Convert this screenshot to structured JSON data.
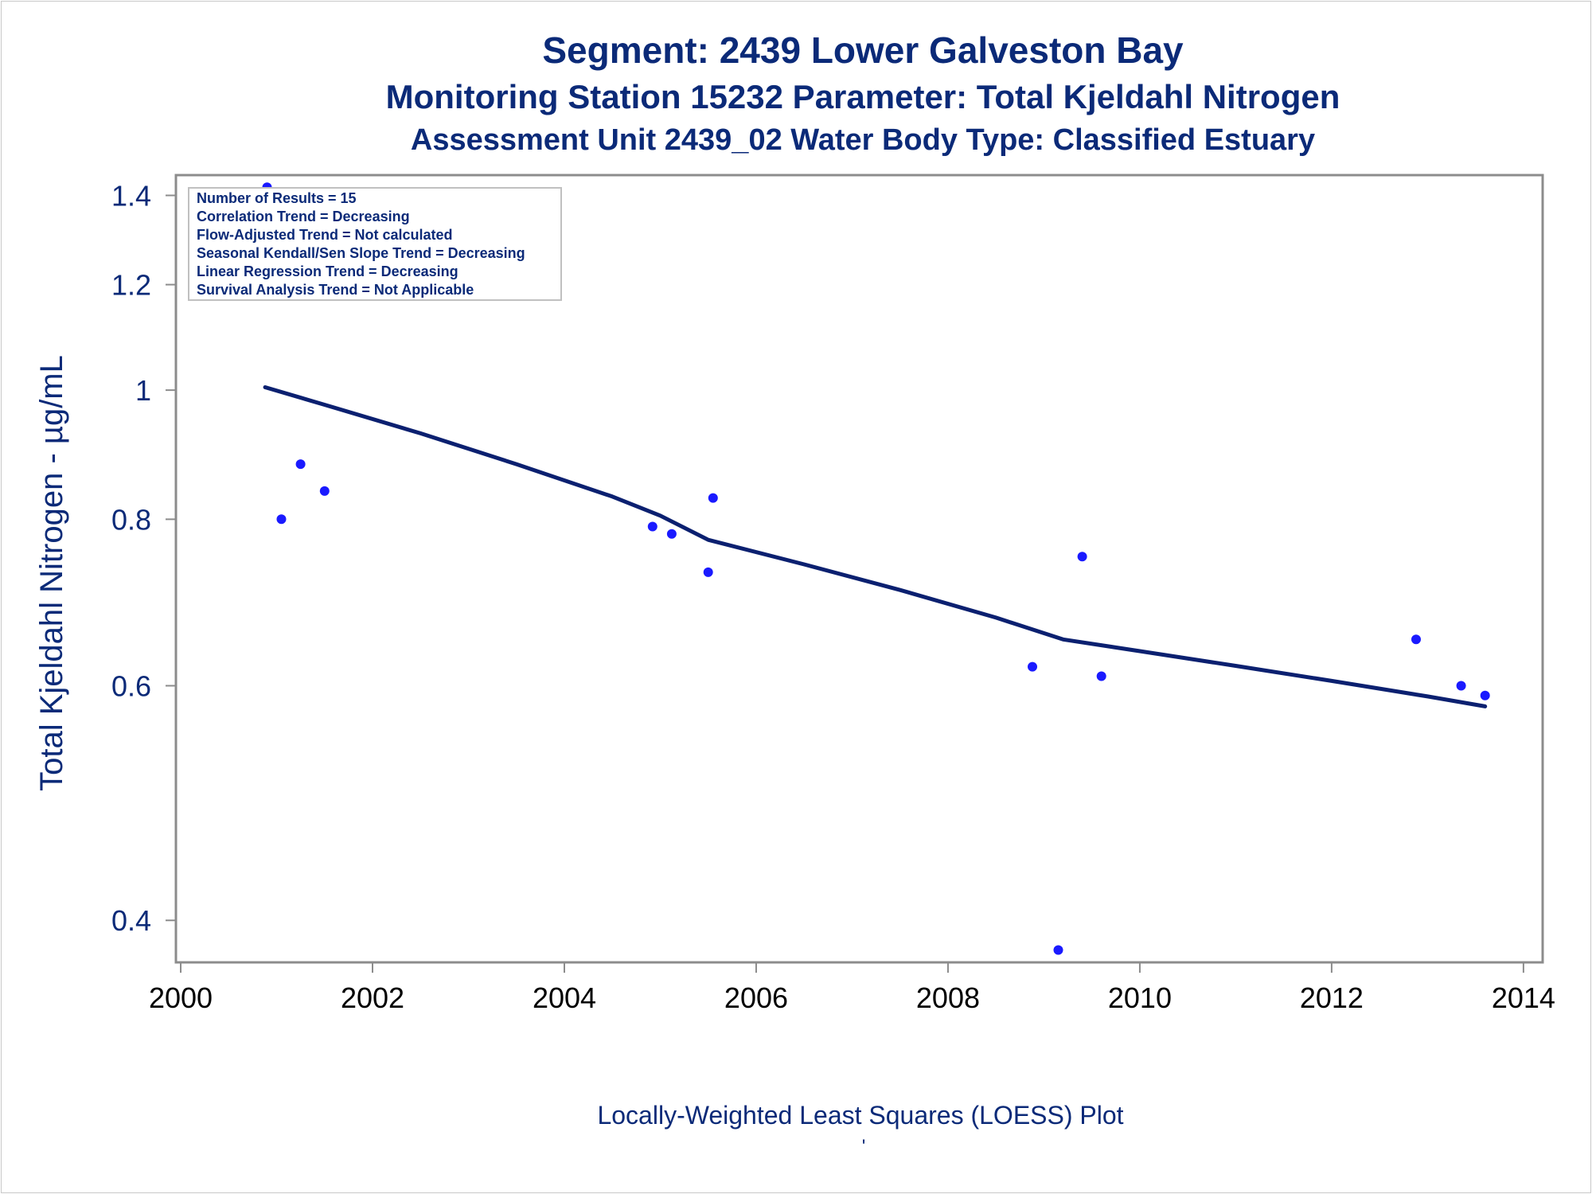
{
  "titles": {
    "line1": "Segment: 2439  Lower Galveston Bay",
    "line2": "Monitoring Station 15232 Parameter: Total Kjeldahl Nitrogen",
    "line3": "Assessment Unit 2439_02   Water Body Type: Classified Estuary"
  },
  "stats_box": [
    "Number of Results = 15",
    "Correlation Trend = Decreasing",
    "Flow-Adjusted Trend = Not calculated",
    "Seasonal Kendall/Sen Slope Trend = Decreasing",
    "Linear Regression Trend = Decreasing",
    "Survival Analysis Trend = Not Applicable"
  ],
  "footer": {
    "plot_label": "Locally-Weighted Least Squares (LOESS) Plot",
    "tick_mark": "'"
  },
  "colors": {
    "text": "#0b2a78",
    "points": "#1a1aff",
    "line": "#0b2070",
    "axis": "#8c8c8c"
  },
  "chart_data": {
    "type": "scatter",
    "title": "Segment: 2439  Lower Galveston Bay",
    "xlabel": "",
    "ylabel": "Total Kjeldahl Nitrogen -  µg/mL",
    "y_scale": "log",
    "xlim": [
      1999.95,
      2014.2
    ],
    "ylim": [
      0.372,
      1.45
    ],
    "x_ticks": [
      2000,
      2002,
      2004,
      2006,
      2008,
      2010,
      2012,
      2014
    ],
    "y_ticks": [
      0.4,
      0.6,
      0.8,
      1,
      1.2,
      1.4
    ],
    "y_tick_labels": [
      "0.4",
      "0.6",
      "0.8",
      "1",
      "1.2",
      "1.4"
    ],
    "grid": false,
    "points": [
      {
        "x": 2000.9,
        "y": 1.42
      },
      {
        "x": 2001.05,
        "y": 0.8
      },
      {
        "x": 2001.25,
        "y": 0.88
      },
      {
        "x": 2001.5,
        "y": 0.84
      },
      {
        "x": 2004.92,
        "y": 0.79
      },
      {
        "x": 2005.12,
        "y": 0.78
      },
      {
        "x": 2005.5,
        "y": 0.73
      },
      {
        "x": 2005.55,
        "y": 0.83
      },
      {
        "x": 2008.88,
        "y": 0.62
      },
      {
        "x": 2009.15,
        "y": 0.38
      },
      {
        "x": 2009.4,
        "y": 0.75
      },
      {
        "x": 2009.6,
        "y": 0.61
      },
      {
        "x": 2012.88,
        "y": 0.65
      },
      {
        "x": 2013.35,
        "y": 0.6
      },
      {
        "x": 2013.6,
        "y": 0.59
      }
    ],
    "loess_line": {
      "name": "LOESS",
      "x": [
        2000.88,
        2001.5,
        2002.5,
        2003.5,
        2004.5,
        2005.0,
        2005.5,
        2006.5,
        2007.5,
        2008.5,
        2009.2,
        2010.0,
        2011.0,
        2012.0,
        2013.0,
        2013.6
      ],
      "y": [
        1.005,
        0.975,
        0.928,
        0.88,
        0.832,
        0.805,
        0.772,
        0.74,
        0.708,
        0.675,
        0.65,
        0.637,
        0.621,
        0.605,
        0.589,
        0.579
      ]
    }
  }
}
